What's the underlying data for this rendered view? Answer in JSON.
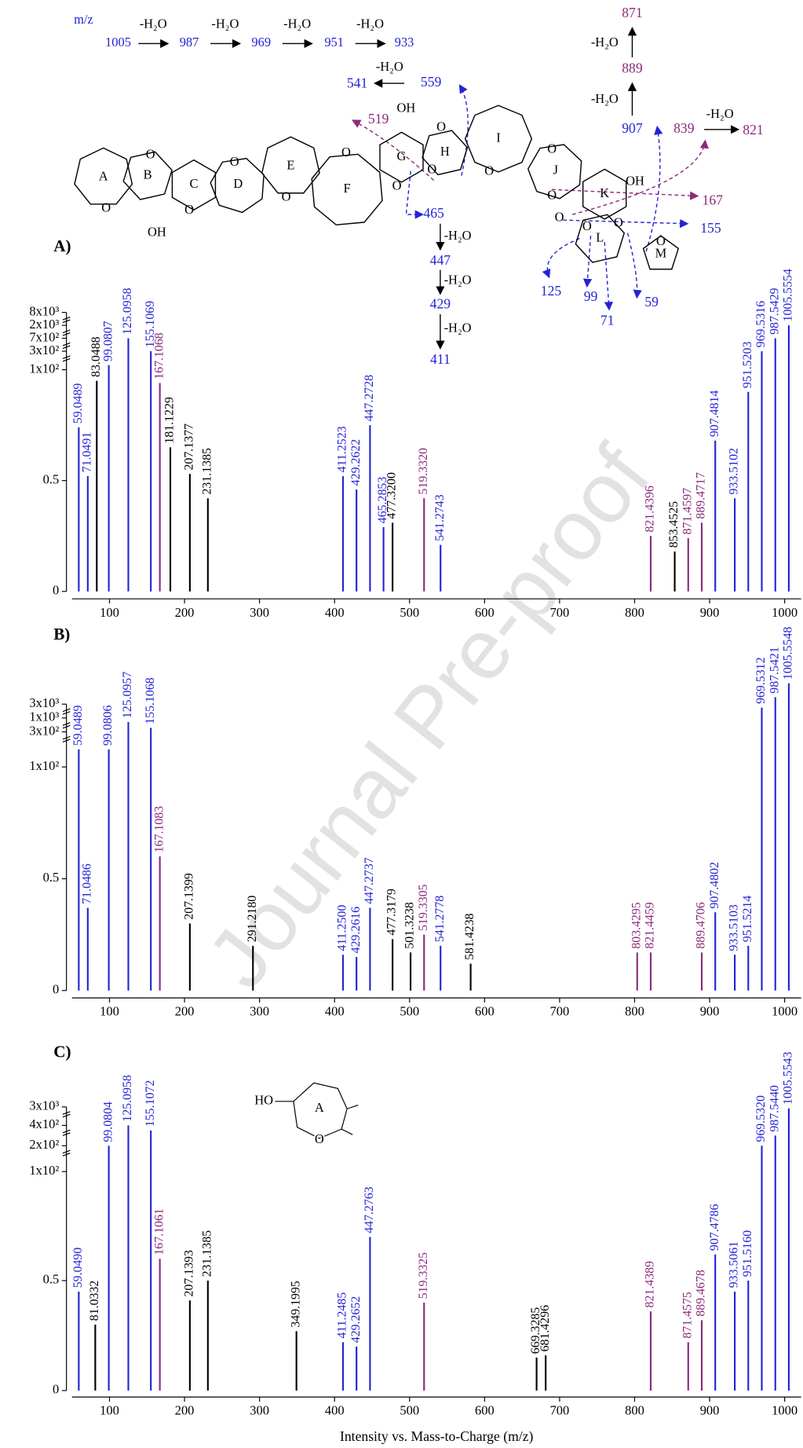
{
  "chart_data": [
    {
      "type": "bar",
      "title": "A)",
      "xlim": [
        50,
        1022
      ],
      "xticks": [
        100,
        200,
        300,
        400,
        500,
        600,
        700,
        800,
        900,
        1000
      ],
      "yticks": [
        0,
        0.5,
        {
          "value": 1,
          "label": "1x10²"
        },
        {
          "value": 3,
          "label": "3x10²"
        },
        {
          "value": 7,
          "label": "7x10²"
        },
        {
          "value": 20,
          "label": "2x10³"
        },
        {
          "value": 80,
          "label": "8x10³"
        }
      ],
      "series": [
        {
          "color": "#2323d6",
          "x": [
            59.0489,
            71.0491,
            99.0807,
            125.0958,
            155.1069,
            411.2523,
            429.2622,
            447.2728,
            465.2853,
            541.2743,
            907.4814,
            933.5102,
            951.5203,
            969.5316,
            987.5429,
            1005.5554
          ],
          "x_labels": [
            "59.0489",
            "71.0491",
            "99.0807",
            "125.0958",
            "155.1069",
            "411.2523",
            "429.2622",
            "447.2728",
            "465.2853",
            "541.2743",
            "907.4814",
            "933.5102",
            "951.5203",
            "969.5316",
            "987.5429",
            "1005.5554"
          ],
          "values": [
            0.74,
            0.52,
            1.5,
            7,
            3,
            0.52,
            0.46,
            0.75,
            0.29,
            0.21,
            0.68,
            0.42,
            0.9,
            3,
            7,
            20
          ]
        },
        {
          "color": "#8a2a7c",
          "x": [
            167.1068,
            519.332,
            821.4396,
            871.4597,
            889.4717
          ],
          "x_labels": [
            "167.1068",
            "519.3320",
            "821.4396",
            "871.4597",
            "889.4717"
          ],
          "values": [
            0.94,
            0.42,
            0.25,
            0.24,
            0.31
          ]
        },
        {
          "color": "#000000",
          "x": [
            83.0488,
            181.1229,
            207.1377,
            231.1385,
            477.32,
            853.4525
          ],
          "x_labels": [
            "83.0488",
            "181.1229",
            "207.1377",
            "231.1385",
            "477.3200",
            "853.4525"
          ],
          "values": [
            0.95,
            0.65,
            0.53,
            0.42,
            0.31,
            0.18
          ]
        }
      ]
    },
    {
      "type": "bar",
      "title": "B)",
      "xlim": [
        50,
        1022
      ],
      "xticks": [
        100,
        200,
        300,
        400,
        500,
        600,
        700,
        800,
        900,
        1000
      ],
      "yticks": [
        0,
        0.5,
        {
          "value": 1,
          "label": "1x10²"
        },
        {
          "value": 3,
          "label": "3x10²"
        },
        {
          "value": 10,
          "label": "1x10³"
        },
        {
          "value": 30,
          "label": "3x10³"
        }
      ],
      "series": [
        {
          "color": "#2323d6",
          "x": [
            59.0489,
            71.0486,
            99.0806,
            125.0957,
            155.1068,
            411.25,
            429.2616,
            447.2737,
            541.2778,
            907.4802,
            933.5103,
            951.5214,
            969.5312,
            987.5421,
            1005.5548
          ],
          "x_labels": [
            "59.0489",
            "71.0486",
            "99.0806",
            "125.0957",
            "155.1068",
            "411.2500",
            "429.2616",
            "447.2737",
            "541.2778",
            "907.4802",
            "933.5103",
            "951.5214",
            "969.5312",
            "987.5421",
            "1005.5548"
          ],
          "values": [
            2,
            0.37,
            2,
            8,
            5,
            0.16,
            0.15,
            0.37,
            0.2,
            0.35,
            0.16,
            0.2,
            25,
            40,
            60
          ]
        },
        {
          "color": "#8a2a7c",
          "x": [
            167.1083,
            519.3305,
            803.4295,
            821.4459,
            889.4706
          ],
          "x_labels": [
            "167.1083",
            "519.3305",
            "803.4295",
            "821.4459",
            "889.4706"
          ],
          "values": [
            0.6,
            0.25,
            0.17,
            0.17,
            0.17
          ]
        },
        {
          "color": "#000000",
          "x": [
            207.1399,
            291.218,
            477.3179,
            501.3238,
            581.4238
          ],
          "x_labels": [
            "207.1399",
            "291.2180",
            "477.3179",
            "501.3238",
            "581.4238"
          ],
          "values": [
            0.3,
            0.2,
            0.23,
            0.17,
            0.12
          ]
        }
      ]
    },
    {
      "type": "bar",
      "title": "C)",
      "xlabel": "Intensity vs. Mass-to-Charge (m/z)",
      "xlim": [
        50,
        1022
      ],
      "xticks": [
        100,
        200,
        300,
        400,
        500,
        600,
        700,
        800,
        900,
        1000
      ],
      "yticks": [
        0,
        0.5,
        {
          "value": 1,
          "label": "1x10²"
        },
        {
          "value": 2,
          "label": "2x10²"
        },
        {
          "value": 4,
          "label": "4x10²"
        },
        {
          "value": 30,
          "label": "3x10³"
        }
      ],
      "series": [
        {
          "color": "#2323d6",
          "x": [
            59.049,
            99.0804,
            125.0958,
            155.1072,
            411.2485,
            429.2652,
            447.2763,
            907.4786,
            933.5061,
            951.516,
            969.532,
            987.544,
            1005.5543
          ],
          "x_labels": [
            "59.0490",
            "99.0804",
            "125.0958",
            "155.1072",
            "411.2485",
            "429.2652",
            "447.2763",
            "907.4786",
            "933.5061",
            "951.5160",
            "969.5320",
            "987.5440",
            "1005.5543"
          ],
          "values": [
            0.45,
            2,
            4,
            3.5,
            0.22,
            0.2,
            0.7,
            0.62,
            0.45,
            0.5,
            2,
            3,
            28
          ]
        },
        {
          "color": "#8a2a7c",
          "x": [
            167.1061,
            519.3325,
            821.4389,
            871.4575,
            889.4678
          ],
          "x_labels": [
            "167.1061",
            "519.3325",
            "821.4389",
            "871.4575",
            "889.4678"
          ],
          "values": [
            0.6,
            0.4,
            0.36,
            0.22,
            0.32
          ]
        },
        {
          "color": "#000000",
          "x": [
            81.0332,
            207.1393,
            231.1385,
            349.1995,
            669.3285,
            681.4296
          ],
          "x_labels": [
            "81.0332",
            "207.1393",
            "231.1385",
            "349.1995",
            "669.3285",
            "681.4296"
          ],
          "values": [
            0.3,
            0.41,
            0.5,
            0.27,
            0.15,
            0.16
          ]
        }
      ]
    }
  ],
  "structure": {
    "mz": "m/z",
    "loss": "-H₂O",
    "serial_losses": [
      "1005",
      "987",
      "969",
      "951",
      "933"
    ],
    "rings": [
      "A",
      "B",
      "C",
      "D",
      "E",
      "F",
      "G",
      "H",
      "I",
      "J",
      "K",
      "L",
      "M"
    ],
    "hydroxyl": "OH",
    "oxygen": "O",
    "fragments": [
      "559",
      "541",
      "519",
      "465",
      "447",
      "429",
      "411",
      "907",
      "889",
      "871",
      "839",
      "821",
      "167",
      "155",
      "125",
      "99",
      "71",
      "59"
    ],
    "inset": {
      "hydroxyl": "HO",
      "ring": "A",
      "oxygen": "O"
    }
  },
  "watermark": "Journal Pre-proof"
}
